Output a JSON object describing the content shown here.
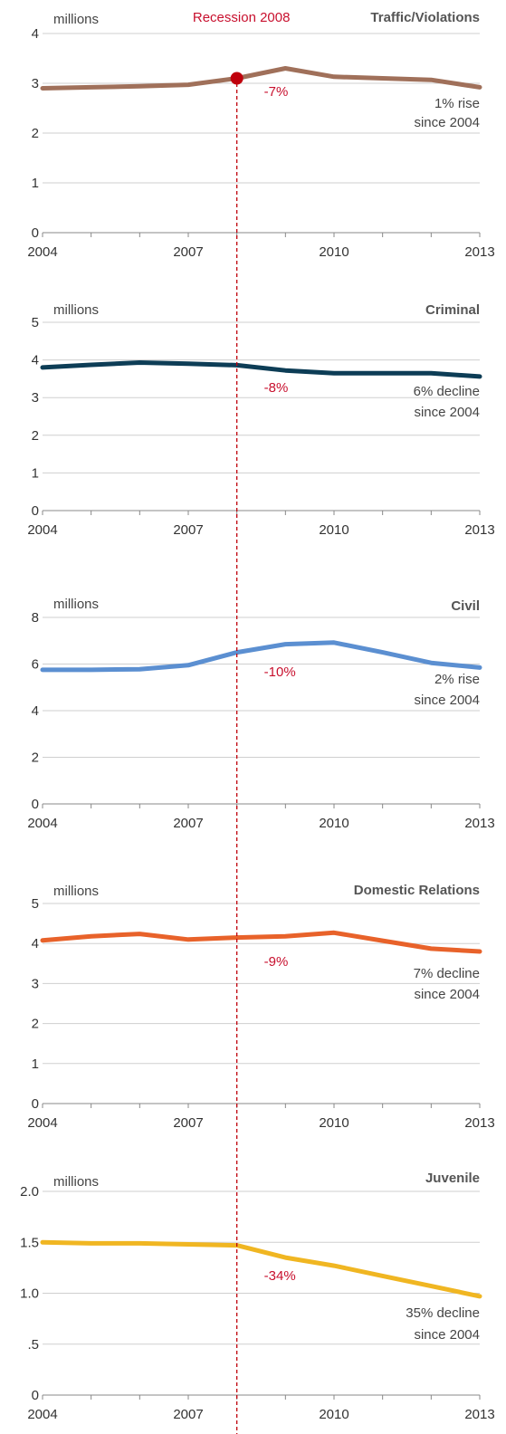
{
  "recession": {
    "label": "Recession 2008",
    "year": 2008,
    "color": "#c0000c"
  },
  "x_range": [
    2004,
    2013
  ],
  "chart_data": [
    {
      "type": "line",
      "title": "Traffic/Violations",
      "unit_label": "millions",
      "color": "#a0705a",
      "x": [
        2004,
        2005,
        2006,
        2007,
        2008,
        2009,
        2010,
        2011,
        2012,
        2013
      ],
      "values": [
        2.9,
        2.92,
        2.94,
        2.97,
        3.1,
        3.3,
        3.13,
        3.1,
        3.07,
        2.92
      ],
      "ylim": [
        0,
        4
      ],
      "yticks": [
        0,
        1,
        2,
        3,
        4
      ],
      "ytick_labels": [
        "0",
        "1",
        "2",
        "3",
        "4"
      ],
      "xtick_labels": [
        "2004",
        "2007",
        "2010",
        "2013"
      ],
      "change_label": "-7%",
      "note_line1": "1% rise",
      "note_line2": "since 2004",
      "recession_marker": true
    },
    {
      "type": "line",
      "title": "Criminal",
      "unit_label": "millions",
      "color": "#0d3d56",
      "x": [
        2004,
        2005,
        2006,
        2007,
        2008,
        2009,
        2010,
        2011,
        2012,
        2013
      ],
      "values": [
        3.8,
        3.87,
        3.93,
        3.9,
        3.86,
        3.72,
        3.65,
        3.65,
        3.65,
        3.56
      ],
      "ylim": [
        0,
        5
      ],
      "yticks": [
        0,
        1,
        2,
        3,
        4,
        5
      ],
      "ytick_labels": [
        "0",
        "1",
        "2",
        "3",
        "4",
        "5"
      ],
      "xtick_labels": [
        "2004",
        "2007",
        "2010",
        "2013"
      ],
      "change_label": "-8%",
      "note_line1": "6% decline",
      "note_line2": "since 2004",
      "recession_marker": false
    },
    {
      "type": "line",
      "title": "Civil",
      "unit_label": "millions",
      "color": "#5b8fd1",
      "x": [
        2004,
        2005,
        2006,
        2007,
        2008,
        2009,
        2010,
        2011,
        2012,
        2013
      ],
      "values": [
        5.75,
        5.75,
        5.78,
        5.95,
        6.5,
        6.85,
        6.92,
        6.5,
        6.05,
        5.85
      ],
      "ylim": [
        0,
        8
      ],
      "yticks": [
        0,
        2,
        4,
        6,
        8
      ],
      "ytick_labels": [
        "0",
        "2",
        "4",
        "6",
        "8"
      ],
      "xtick_labels": [
        "2004",
        "2007",
        "2010",
        "2013"
      ],
      "change_label": "-10%",
      "note_line1": "2% rise",
      "note_line2": "since 2004",
      "recession_marker": false
    },
    {
      "type": "line",
      "title": "Domestic Relations",
      "unit_label": "millions",
      "color": "#e8622a",
      "x": [
        2004,
        2005,
        2006,
        2007,
        2008,
        2009,
        2010,
        2011,
        2012,
        2013
      ],
      "values": [
        4.08,
        4.18,
        4.24,
        4.1,
        4.15,
        4.18,
        4.27,
        4.07,
        3.87,
        3.8
      ],
      "ylim": [
        0,
        5
      ],
      "yticks": [
        0,
        1,
        2,
        3,
        4,
        5
      ],
      "ytick_labels": [
        "0",
        "1",
        "2",
        "3",
        "4",
        "5"
      ],
      "xtick_labels": [
        "2004",
        "2007",
        "2010",
        "2013"
      ],
      "change_label": "-9%",
      "note_line1": "7% decline",
      "note_line2": "since 2004",
      "recession_marker": false
    },
    {
      "type": "line",
      "title": "Juvenile",
      "unit_label": "millions",
      "color": "#f0b622",
      "x": [
        2004,
        2005,
        2006,
        2007,
        2008,
        2009,
        2010,
        2011,
        2012,
        2013
      ],
      "values": [
        1.5,
        1.49,
        1.49,
        1.48,
        1.47,
        1.35,
        1.27,
        1.17,
        1.07,
        0.97
      ],
      "ylim": [
        0,
        2.0
      ],
      "yticks": [
        0,
        0.5,
        1.0,
        1.5,
        2.0
      ],
      "ytick_labels": [
        "0",
        ".5",
        "1.0",
        "1.5",
        "2.0"
      ],
      "xtick_labels": [
        "2004",
        "2007",
        "2010",
        "2013"
      ],
      "change_label": "-34%",
      "note_line1": "35% decline",
      "note_line2": "since 2004",
      "recession_marker": false
    }
  ]
}
